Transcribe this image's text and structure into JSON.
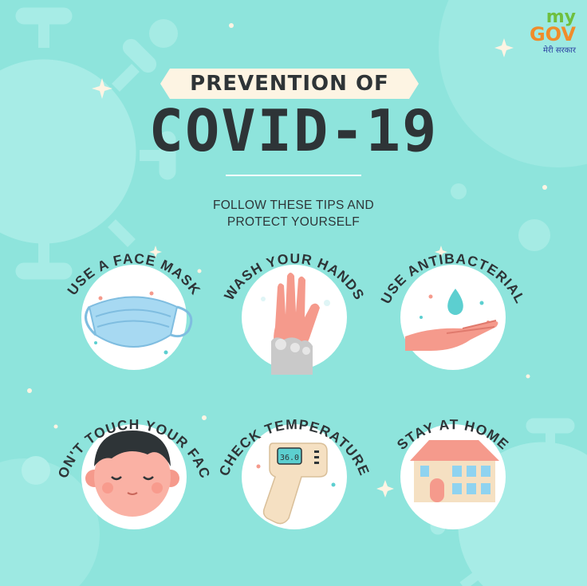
{
  "logo": {
    "my": "my",
    "gov": "GOV",
    "tagline": "मेरी सरकार"
  },
  "header": {
    "title_small": "PREVENTION OF",
    "title_large": "COVID-19",
    "subtitle_line1": "FOLLOW THESE TIPS AND",
    "subtitle_line2": "PROTECT YOURSELF"
  },
  "tips": [
    {
      "label": "USE A FACE MASK",
      "icon": "face-mask-icon"
    },
    {
      "label": "WASH YOUR HANDS",
      "icon": "hand-wash-icon"
    },
    {
      "label": "USE ANTIBACTERIAL",
      "icon": "sanitizer-hand-icon"
    },
    {
      "label": "DON'T TOUCH YOUR FACE",
      "icon": "face-icon"
    },
    {
      "label": "CHECK TEMPERATURE",
      "icon": "thermometer-icon"
    },
    {
      "label": "STAY AT HOME",
      "icon": "house-icon"
    }
  ],
  "thermometer_reading": "36.0",
  "colors": {
    "background": "#8ee4dc",
    "text": "#2e3437",
    "circle": "#ffffff",
    "accent_pink": "#f59a8c",
    "accent_teal": "#5ccfd0"
  }
}
